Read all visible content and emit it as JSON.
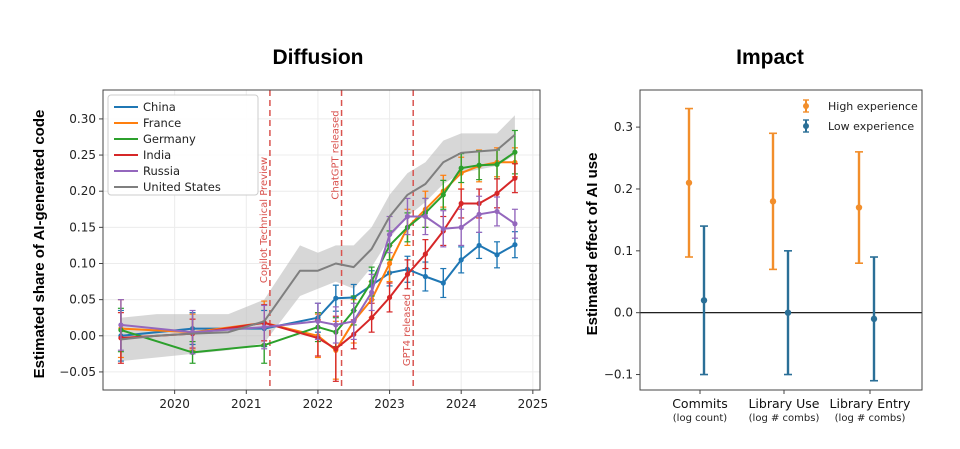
{
  "chart_data": [
    {
      "type": "line",
      "title": "Diffusion",
      "ylabel": "Estimated share of AI-generated code",
      "xlabel": "",
      "xlim": [
        2019.0,
        2025.1
      ],
      "ylim": [
        -0.075,
        0.34
      ],
      "xticks": [
        2020,
        2021,
        2022,
        2023,
        2024,
        2025
      ],
      "yticks": [
        -0.05,
        0.0,
        0.05,
        0.1,
        0.15,
        0.2,
        0.25,
        0.3
      ],
      "ytick_labels": [
        "−0.05",
        "0.00",
        "0.05",
        "0.10",
        "0.15",
        "0.20",
        "0.25",
        "0.30"
      ],
      "legend_position": "top-left",
      "annotations": [
        {
          "x": 2021.33,
          "label": "Copilot Technical Preview",
          "color": "#d9534f"
        },
        {
          "x": 2022.33,
          "label": "ChatGPT released",
          "color": "#d9534f"
        },
        {
          "x": 2023.33,
          "label": "GPT4 released",
          "color": "#d9534f"
        }
      ],
      "band": {
        "series": "United States",
        "x": [
          2019.25,
          2019.75,
          2020.25,
          2020.75,
          2021.25,
          2021.75,
          2022.0,
          2022.25,
          2022.5,
          2022.75,
          2023.0,
          2023.25,
          2023.5,
          2023.75,
          2024.0,
          2024.25,
          2024.5,
          2024.75
        ],
        "lower": [
          -0.035,
          -0.03,
          -0.025,
          -0.02,
          -0.01,
          0.055,
          0.065,
          0.075,
          0.065,
          0.095,
          0.135,
          0.165,
          0.185,
          0.21,
          0.225,
          0.23,
          0.235,
          0.25
        ],
        "upper": [
          0.025,
          0.03,
          0.03,
          0.03,
          0.05,
          0.125,
          0.115,
          0.125,
          0.125,
          0.15,
          0.195,
          0.225,
          0.24,
          0.27,
          0.28,
          0.28,
          0.28,
          0.305
        ]
      },
      "series": [
        {
          "name": "China",
          "color": "#1f77b4",
          "x": [
            2019.25,
            2020.25,
            2021.25,
            2022.0,
            2022.25,
            2022.5,
            2022.75,
            2023.0,
            2023.25,
            2023.5,
            2023.75,
            2024.0,
            2024.25,
            2024.5,
            2024.75
          ],
          "y": [
            0.0,
            0.01,
            0.01,
            0.025,
            0.052,
            0.053,
            0.07,
            0.087,
            0.092,
            0.082,
            0.073,
            0.105,
            0.125,
            0.112,
            0.126
          ],
          "err": [
            0.035,
            0.022,
            0.025,
            0.02,
            0.018,
            0.018,
            0.02,
            0.018,
            0.018,
            0.02,
            0.02,
            0.018,
            0.018,
            0.018,
            0.018
          ]
        },
        {
          "name": "France",
          "color": "#ff7f0e",
          "x": [
            2019.25,
            2020.25,
            2021.25,
            2022.0,
            2022.25,
            2022.5,
            2022.75,
            2023.0,
            2023.25,
            2023.5,
            2023.75,
            2024.0,
            2024.25,
            2024.5,
            2024.75
          ],
          "y": [
            0.01,
            0.005,
            0.018,
            0.0,
            -0.02,
            0.02,
            0.05,
            0.1,
            0.15,
            0.175,
            0.2,
            0.225,
            0.235,
            0.24,
            0.24
          ],
          "err": [
            0.04,
            0.025,
            0.03,
            0.03,
            0.04,
            0.03,
            0.025,
            0.025,
            0.025,
            0.025,
            0.022,
            0.022,
            0.022,
            0.02,
            0.02
          ]
        },
        {
          "name": "Germany",
          "color": "#2ca02c",
          "x": [
            2019.25,
            2020.25,
            2021.25,
            2022.0,
            2022.25,
            2022.5,
            2022.75,
            2023.0,
            2023.25,
            2023.5,
            2023.75,
            2024.0,
            2024.25,
            2024.5,
            2024.75
          ],
          "y": [
            0.008,
            -0.023,
            -0.013,
            0.012,
            0.005,
            0.035,
            0.075,
            0.125,
            0.15,
            0.17,
            0.195,
            0.232,
            0.236,
            0.237,
            0.254
          ],
          "err": [
            0.03,
            0.015,
            0.025,
            0.02,
            0.02,
            0.02,
            0.02,
            0.02,
            0.02,
            0.02,
            0.02,
            0.02,
            0.02,
            0.02,
            0.03
          ]
        },
        {
          "name": "India",
          "color": "#d62728",
          "x": [
            2019.25,
            2020.25,
            2021.25,
            2022.0,
            2022.25,
            2022.5,
            2022.75,
            2023.0,
            2023.25,
            2023.5,
            2023.75,
            2024.0,
            2024.25,
            2024.5,
            2024.75
          ],
          "y": [
            -0.003,
            0.003,
            0.018,
            -0.003,
            -0.018,
            0.002,
            0.025,
            0.053,
            0.085,
            0.113,
            0.145,
            0.183,
            0.183,
            0.197,
            0.218
          ],
          "err": [
            0.035,
            0.02,
            0.025,
            0.025,
            0.045,
            0.02,
            0.02,
            0.02,
            0.02,
            0.02,
            0.02,
            0.02,
            0.02,
            0.02,
            0.02
          ]
        },
        {
          "name": "Russia",
          "color": "#9467bd",
          "x": [
            2019.25,
            2020.25,
            2021.25,
            2022.0,
            2022.25,
            2022.5,
            2022.75,
            2023.0,
            2023.25,
            2023.5,
            2023.75,
            2024.0,
            2024.25,
            2024.5,
            2024.75
          ],
          "y": [
            0.015,
            0.005,
            0.012,
            0.02,
            0.015,
            0.02,
            0.06,
            0.14,
            0.165,
            0.165,
            0.148,
            0.15,
            0.168,
            0.172,
            0.155
          ],
          "err": [
            0.035,
            0.03,
            0.03,
            0.025,
            0.025,
            0.025,
            0.025,
            0.025,
            0.025,
            0.025,
            0.025,
            0.025,
            0.025,
            0.02,
            0.02
          ]
        },
        {
          "name": "United States",
          "color": "#7f7f7f",
          "x": [
            2019.25,
            2019.75,
            2020.25,
            2020.75,
            2021.25,
            2021.75,
            2022.0,
            2022.25,
            2022.5,
            2022.75,
            2023.0,
            2023.25,
            2023.5,
            2023.75,
            2024.0,
            2024.25,
            2024.5,
            2024.75
          ],
          "y": [
            -0.005,
            0.0,
            0.003,
            0.005,
            0.02,
            0.09,
            0.09,
            0.1,
            0.095,
            0.12,
            0.165,
            0.195,
            0.21,
            0.24,
            0.253,
            0.255,
            0.257,
            0.278
          ],
          "err": null
        }
      ]
    },
    {
      "type": "errorbar",
      "title": "Impact",
      "ylabel": "Estimated effect of AI use",
      "ylim": [
        -0.125,
        0.36
      ],
      "yticks": [
        -0.1,
        0.0,
        0.1,
        0.2,
        0.3
      ],
      "ytick_labels": [
        "−0.1",
        "0.0",
        "0.1",
        "0.2",
        "0.3"
      ],
      "legend_position": "top-right",
      "categories": [
        {
          "label": "Commits",
          "sub": "(log count)"
        },
        {
          "label": "Library Use",
          "sub": "(log # combs)"
        },
        {
          "label": "Library Entry",
          "sub": "(log # combs)"
        }
      ],
      "series": [
        {
          "name": "High experience",
          "color": "#f28e2b",
          "values": [
            0.21,
            0.18,
            0.17
          ],
          "low": [
            0.09,
            0.07,
            0.08
          ],
          "high": [
            0.33,
            0.29,
            0.26
          ]
        },
        {
          "name": "Low experience",
          "color": "#2a6f97",
          "values": [
            0.02,
            0.0,
            -0.01
          ],
          "low": [
            -0.1,
            -0.1,
            -0.11
          ],
          "high": [
            0.14,
            0.1,
            0.09
          ]
        }
      ]
    }
  ]
}
